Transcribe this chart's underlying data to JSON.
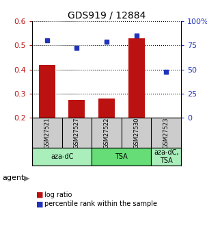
{
  "title": "GDS919 / 12884",
  "samples": [
    "GSM27521",
    "GSM27527",
    "GSM27522",
    "GSM27530",
    "GSM27523"
  ],
  "log_ratio": [
    0.42,
    0.275,
    0.28,
    0.53,
    0.2
  ],
  "percentile_rank": [
    80.5,
    72.5,
    78.5,
    85.5,
    48.0
  ],
  "bar_color": "#bb1111",
  "dot_color": "#2233bb",
  "ylim_left": [
    0.2,
    0.6
  ],
  "ylim_right": [
    0,
    100
  ],
  "yticks_left": [
    0.2,
    0.3,
    0.4,
    0.5,
    0.6
  ],
  "yticks_right": [
    0,
    25,
    50,
    75,
    100
  ],
  "ytick_labels_right": [
    "0",
    "25",
    "50",
    "75",
    "100%"
  ],
  "agents": [
    {
      "label": "aza-dC",
      "color": "#aaeebb",
      "span": [
        0,
        2
      ]
    },
    {
      "label": "TSA",
      "color": "#66dd77",
      "span": [
        2,
        4
      ]
    },
    {
      "label": "aza-dC,\nTSA",
      "color": "#aaeebb",
      "span": [
        4,
        5
      ]
    }
  ],
  "agent_label": "agent",
  "legend_bar_label": "log ratio",
  "legend_dot_label": "percentile rank within the sample",
  "background_color": "#ffffff",
  "plot_bg_color": "#ffffff",
  "header_bg_color": "#cccccc"
}
